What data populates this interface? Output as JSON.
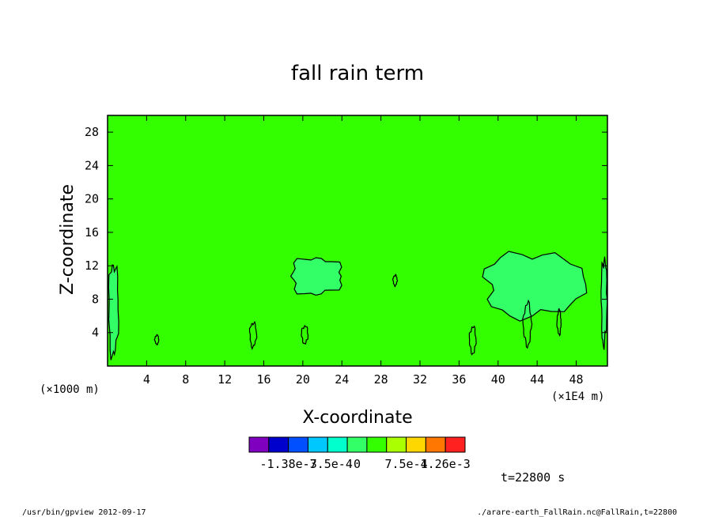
{
  "chart_data": {
    "type": "heatmap",
    "title": "fall rain term",
    "xlabel": "X-coordinate",
    "ylabel": "Z-coordinate",
    "x_unit_label": "(×1E4 m)",
    "y_unit_label": "(×1000 m)",
    "xlim": [
      0,
      51.2
    ],
    "ylim": [
      0,
      30
    ],
    "x_ticks": [
      4,
      8,
      12,
      16,
      20,
      24,
      28,
      32,
      36,
      40,
      44,
      48
    ],
    "y_ticks": [
      4,
      8,
      12,
      16,
      20,
      24,
      28
    ],
    "background_color": "#33ff00",
    "contour_color": "#000000",
    "contour_features": [
      {
        "x": [
          18.2,
          24.5
        ],
        "y": [
          8,
          13.5
        ],
        "fill": "#33ff66"
      },
      {
        "x": [
          37.5,
          49.5
        ],
        "y": [
          5,
          14.5
        ],
        "fill": "#33ff66"
      },
      {
        "x": [
          0,
          1.2
        ],
        "y": [
          0,
          13.5
        ],
        "fill": "#33ff66"
      },
      {
        "x": [
          50.5,
          51.2
        ],
        "y": [
          1.5,
          14
        ],
        "fill": "#33ff66"
      },
      {
        "x": [
          14.5,
          15.3
        ],
        "y": [
          2,
          5.5
        ],
        "fill": null
      },
      {
        "x": [
          19.8,
          20.6
        ],
        "y": [
          2.5,
          5
        ],
        "fill": null
      },
      {
        "x": [
          29.2,
          29.7
        ],
        "y": [
          9.5,
          11
        ],
        "fill": null
      },
      {
        "x": [
          37,
          37.8
        ],
        "y": [
          1.2,
          5
        ],
        "fill": null
      },
      {
        "x": [
          4.8,
          5.3
        ],
        "y": [
          2.5,
          3.8
        ],
        "fill": null
      },
      {
        "x": [
          42.5,
          43.5
        ],
        "y": [
          2,
          8
        ],
        "fill": null
      },
      {
        "x": [
          46,
          46.5
        ],
        "y": [
          3.5,
          7
        ],
        "fill": null
      }
    ],
    "colorbar": {
      "colors": [
        "#7f00bf",
        "#0000cc",
        "#0050ff",
        "#00c8ff",
        "#00ffcc",
        "#33ff66",
        "#33ff00",
        "#aaff00",
        "#ffd700",
        "#ff7700",
        "#ff2020"
      ],
      "labels": [
        "-1.38e-3",
        "-7.5e-4",
        "0",
        "7.5e-4",
        "1.26e-3"
      ]
    }
  },
  "time_label": "t=22800 s",
  "footer": {
    "left": "/usr/bin/gpview  2012-09-17",
    "right": "./arare-earth_FallRain.nc@FallRain,t=22800"
  }
}
